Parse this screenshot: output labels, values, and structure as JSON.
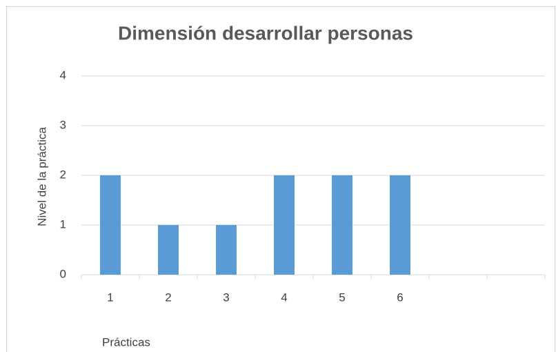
{
  "chart_data": {
    "type": "bar",
    "title": "Dimensión desarrollar personas",
    "y_label": "Nivel de la práctica",
    "x_label": "Prácticas",
    "categories": [
      "1",
      "2",
      "3",
      "4",
      "5",
      "6",
      null,
      null
    ],
    "values": [
      2,
      1,
      1,
      2,
      2,
      2,
      null,
      null
    ],
    "color": "#5b9bd5",
    "ylim": [
      0,
      4
    ],
    "yticks": [
      0,
      1,
      2,
      3,
      4
    ],
    "grid": true
  }
}
